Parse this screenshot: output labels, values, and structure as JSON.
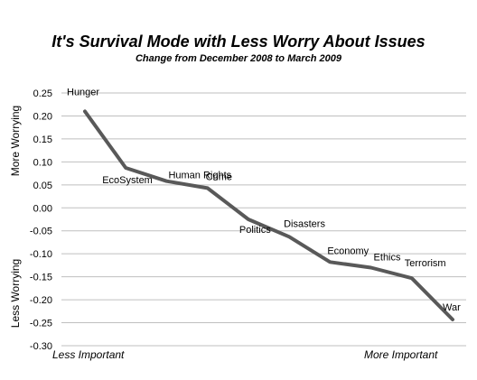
{
  "chart_data": {
    "type": "line",
    "title": "It's Survival Mode with Less Worry About Issues",
    "subtitle": "Change from December  2008 to March 2009",
    "ylim": [
      -0.3,
      0.25
    ],
    "yticks": [
      "0.25",
      "0.20",
      "0.15",
      "0.10",
      "0.05",
      "0.00",
      "-0.05",
      "-0.10",
      "-0.15",
      "-0.20",
      "-0.25",
      "-0.30"
    ],
    "grid": true,
    "y_axis_labels": {
      "top": "More Worrying",
      "bottom": "Less Worrying"
    },
    "x_axis_labels": {
      "left": "Less Important",
      "right": "More Important"
    },
    "series_color": "#595959",
    "categories": [
      "Hunger",
      "EcoSystem",
      "Human Rights",
      "Crime",
      "Politics",
      "Disasters",
      "Economy",
      "Ethics",
      "Terrorism",
      "War"
    ],
    "values": [
      0.21,
      0.087,
      0.058,
      0.043,
      -0.025,
      -0.063,
      -0.118,
      -0.13,
      -0.153,
      -0.243
    ]
  }
}
